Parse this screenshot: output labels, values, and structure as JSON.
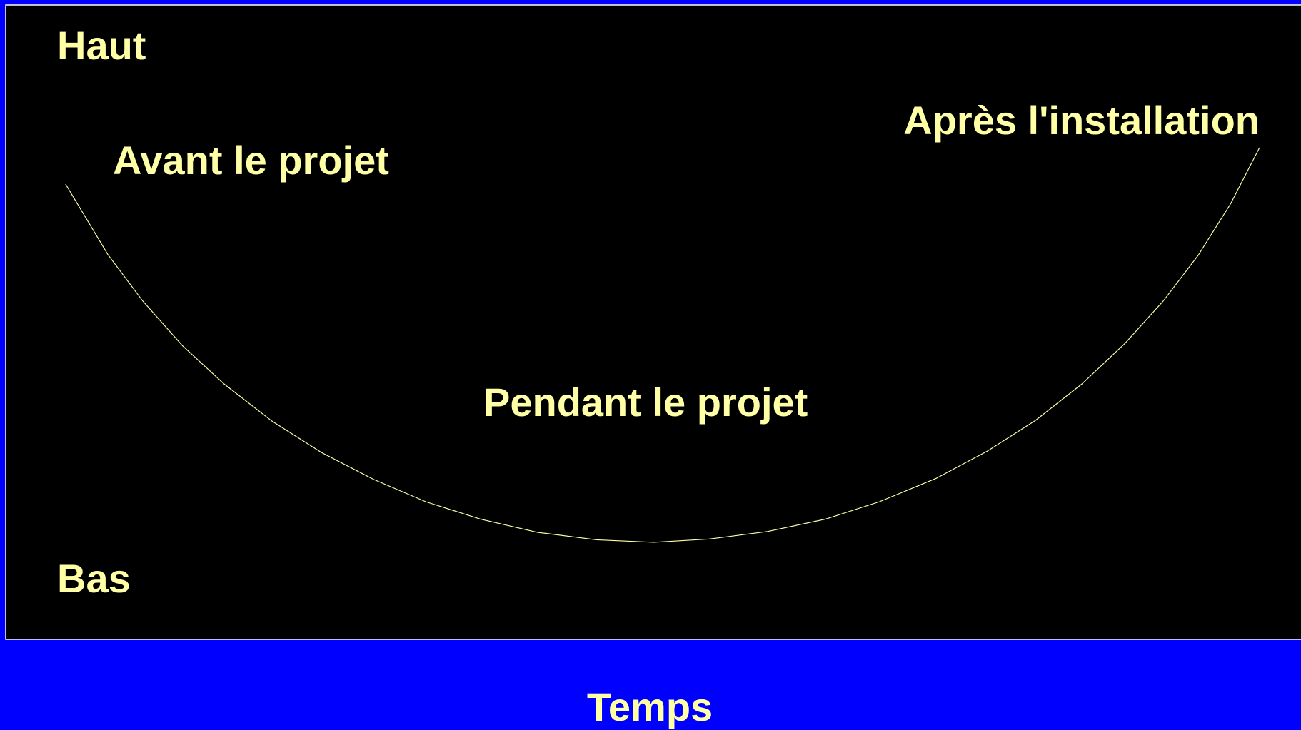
{
  "labels": {
    "top": "Haut",
    "bottom": "Bas",
    "before": "Avant le projet",
    "during": "Pendant le projet",
    "after": "Après l'installation"
  },
  "axis_label": "Temps"
}
